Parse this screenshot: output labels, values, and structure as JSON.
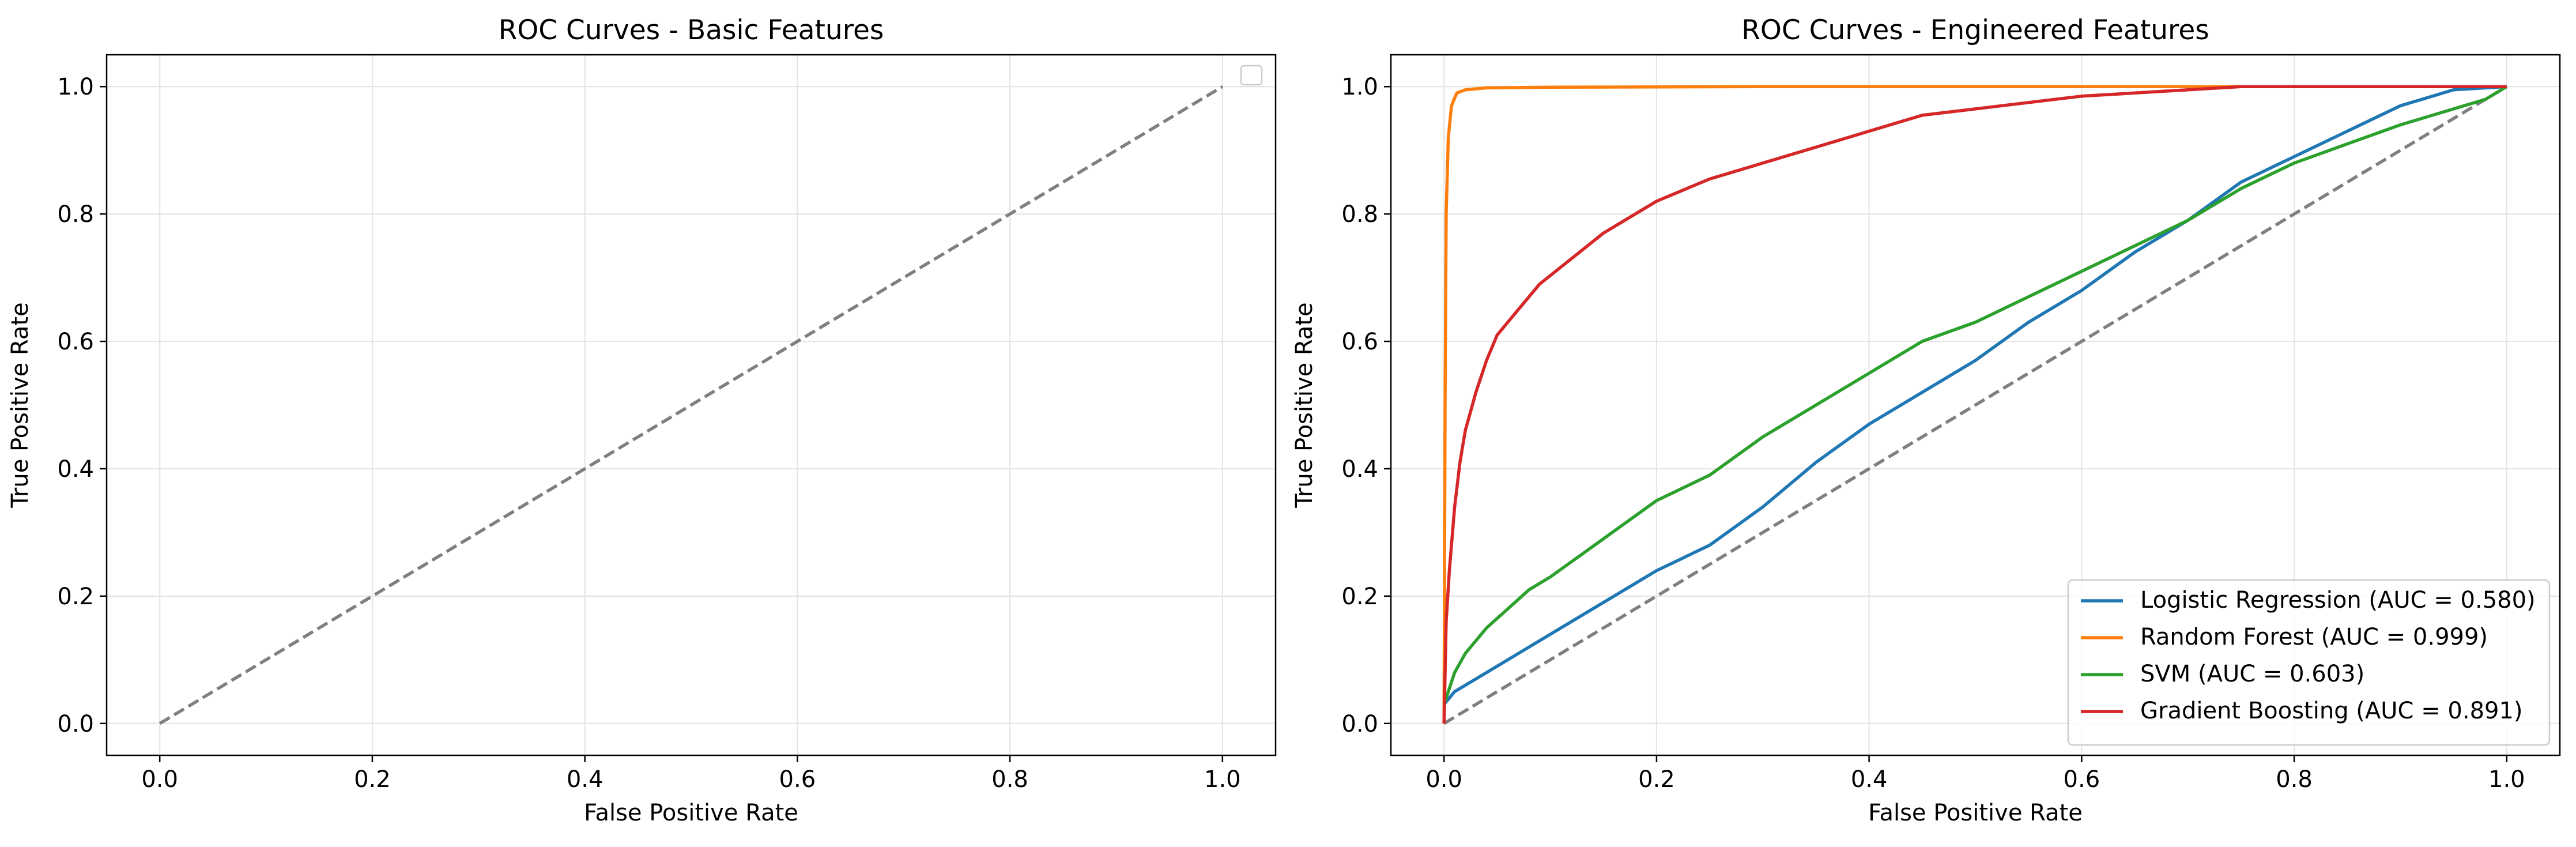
{
  "chart_data": [
    {
      "type": "line",
      "title": "ROC Curves - Basic Features",
      "xlabel": "False Positive Rate",
      "ylabel": "True Positive Rate",
      "xlim": [
        -0.05,
        1.05
      ],
      "ylim": [
        -0.05,
        1.05
      ],
      "xticks": [
        "0.0",
        "0.2",
        "0.4",
        "0.6",
        "0.8",
        "1.0"
      ],
      "yticks": [
        "0.0",
        "0.2",
        "0.4",
        "0.6",
        "0.8",
        "1.0"
      ],
      "grid": true,
      "legend": {
        "placement": "upper-right",
        "entries": []
      },
      "reference_line": {
        "x": [
          0,
          1
        ],
        "y": [
          0,
          1
        ],
        "style": "dashed",
        "color": "#7f7f7f"
      },
      "series": []
    },
    {
      "type": "line",
      "title": "ROC Curves - Engineered Features",
      "xlabel": "False Positive Rate",
      "ylabel": "True Positive Rate",
      "xlim": [
        -0.05,
        1.05
      ],
      "ylim": [
        -0.05,
        1.05
      ],
      "xticks": [
        "0.0",
        "0.2",
        "0.4",
        "0.6",
        "0.8",
        "1.0"
      ],
      "yticks": [
        "0.0",
        "0.2",
        "0.4",
        "0.6",
        "0.8",
        "1.0"
      ],
      "grid": true,
      "legend": {
        "placement": "lower-right"
      },
      "reference_line": {
        "x": [
          0,
          1
        ],
        "y": [
          0,
          1
        ],
        "style": "dashed",
        "color": "#7f7f7f"
      },
      "series": [
        {
          "name": "Logistic Regression (AUC = 0.580)",
          "color": "#1f77b4",
          "x": [
            0,
            0.01,
            0.03,
            0.05,
            0.08,
            0.1,
            0.15,
            0.2,
            0.25,
            0.3,
            0.35,
            0.4,
            0.45,
            0.5,
            0.55,
            0.6,
            0.65,
            0.7,
            0.75,
            0.8,
            0.85,
            0.9,
            0.95,
            1.0
          ],
          "y": [
            0.03,
            0.05,
            0.07,
            0.09,
            0.12,
            0.14,
            0.19,
            0.24,
            0.28,
            0.34,
            0.41,
            0.47,
            0.52,
            0.57,
            0.63,
            0.68,
            0.74,
            0.79,
            0.85,
            0.89,
            0.93,
            0.97,
            0.995,
            1.0
          ]
        },
        {
          "name": "Random Forest (AUC = 0.999)",
          "color": "#ff7f0e",
          "x": [
            0,
            0.001,
            0.002,
            0.004,
            0.007,
            0.012,
            0.02,
            0.04,
            0.1,
            0.3,
            0.6,
            1.0
          ],
          "y": [
            0.0,
            0.5,
            0.8,
            0.92,
            0.97,
            0.99,
            0.995,
            0.998,
            0.999,
            1.0,
            1.0,
            1.0
          ]
        },
        {
          "name": "SVM (AUC = 0.603)",
          "color": "#2ca02c",
          "x": [
            0,
            0.01,
            0.02,
            0.04,
            0.06,
            0.08,
            0.1,
            0.15,
            0.2,
            0.25,
            0.3,
            0.35,
            0.4,
            0.45,
            0.5,
            0.55,
            0.6,
            0.65,
            0.7,
            0.75,
            0.8,
            0.85,
            0.9,
            0.95,
            0.98,
            1.0
          ],
          "y": [
            0.03,
            0.08,
            0.11,
            0.15,
            0.18,
            0.21,
            0.23,
            0.29,
            0.35,
            0.39,
            0.45,
            0.5,
            0.55,
            0.6,
            0.63,
            0.67,
            0.71,
            0.75,
            0.79,
            0.84,
            0.88,
            0.91,
            0.94,
            0.965,
            0.98,
            1.0
          ]
        },
        {
          "name": "Gradient Boosting (AUC = 0.891)",
          "color": "#d62728",
          "x": [
            0,
            0.002,
            0.005,
            0.01,
            0.015,
            0.02,
            0.03,
            0.04,
            0.05,
            0.07,
            0.09,
            0.12,
            0.15,
            0.2,
            0.25,
            0.3,
            0.35,
            0.4,
            0.45,
            0.5,
            0.55,
            0.6,
            0.65,
            0.7,
            0.75,
            0.8,
            0.9,
            1.0
          ],
          "y": [
            0.0,
            0.16,
            0.24,
            0.34,
            0.41,
            0.46,
            0.52,
            0.57,
            0.61,
            0.65,
            0.69,
            0.73,
            0.77,
            0.82,
            0.855,
            0.88,
            0.905,
            0.93,
            0.955,
            0.965,
            0.975,
            0.985,
            0.99,
            0.995,
            1.0,
            1.0,
            1.0,
            1.0
          ]
        }
      ]
    }
  ]
}
